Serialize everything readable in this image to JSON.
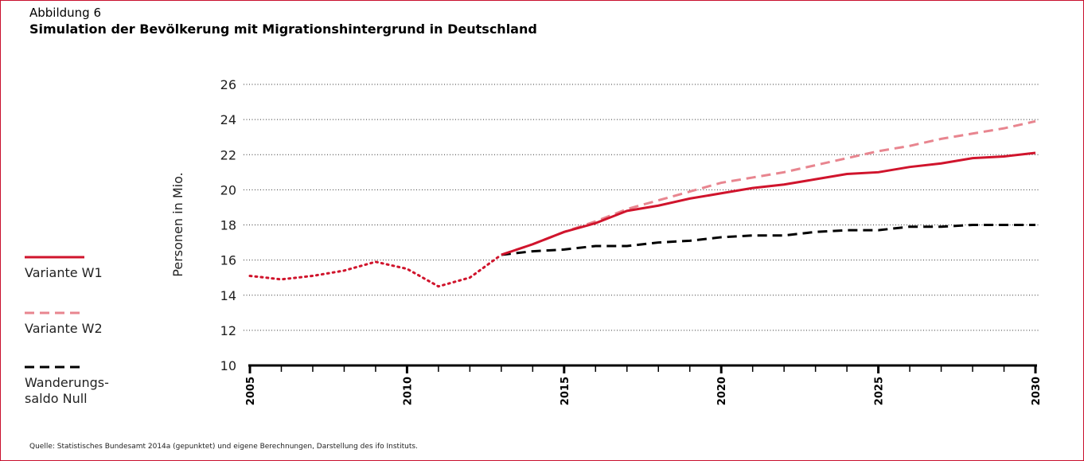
{
  "chart_data": {
    "type": "line",
    "label": "Abbildung 6",
    "title": "Simulation der Bevölkerung mit Migrationshintergrund in Deutschland",
    "ylabel": "Personen in Mio.",
    "source": "Quelle: Statistisches Bundesamt 2014a (gepunktet) und eigene Berechnungen, Darstellung des ifo Instituts.",
    "x": [
      2005,
      2006,
      2007,
      2008,
      2009,
      2010,
      2011,
      2012,
      2013,
      2014,
      2015,
      2016,
      2017,
      2018,
      2019,
      2020,
      2021,
      2022,
      2023,
      2024,
      2025,
      2026,
      2027,
      2028,
      2029,
      2030
    ],
    "series": [
      {
        "color": "#d0142c",
        "style": "dotted",
        "values": [
          15.1,
          14.9,
          15.1,
          15.4,
          15.9,
          15.5,
          14.5,
          15.0,
          16.3,
          null,
          null,
          null,
          null,
          null,
          null,
          null,
          null,
          null,
          null,
          null,
          null,
          null,
          null,
          null,
          null,
          null
        ]
      },
      {
        "name": "Variante W2",
        "color": "#e8858f",
        "style": "dashed",
        "values": [
          null,
          null,
          null,
          null,
          null,
          null,
          null,
          null,
          16.3,
          16.9,
          17.6,
          18.2,
          18.9,
          19.4,
          19.9,
          20.4,
          20.7,
          21.0,
          21.4,
          21.8,
          22.2,
          22.5,
          22.9,
          23.2,
          23.5,
          23.9
        ]
      },
      {
        "name": "Wanderungs-\nsaldo Null",
        "color": "#000000",
        "style": "dashed",
        "values": [
          null,
          null,
          null,
          null,
          null,
          null,
          null,
          null,
          16.3,
          16.5,
          16.6,
          16.8,
          16.8,
          17.0,
          17.1,
          17.3,
          17.4,
          17.4,
          17.6,
          17.7,
          17.7,
          17.9,
          17.9,
          18.0,
          18.0,
          18.0
        ]
      },
      {
        "name": "Variante W1",
        "color": "#d0142c",
        "style": "solid",
        "values": [
          null,
          null,
          null,
          null,
          null,
          null,
          null,
          null,
          16.3,
          16.9,
          17.6,
          18.1,
          18.8,
          19.1,
          19.5,
          19.8,
          20.1,
          20.3,
          20.6,
          20.9,
          21.0,
          21.3,
          21.5,
          21.8,
          21.9,
          22.1
        ]
      }
    ],
    "legend_order": [
      3,
      1,
      2
    ],
    "xlim": [
      2005,
      2030
    ],
    "xticks": [
      2005,
      2010,
      2015,
      2020,
      2025,
      2030
    ],
    "xticks_minor": [
      2005,
      2006,
      2007,
      2008,
      2009,
      2010,
      2011,
      2012,
      2013,
      2014,
      2015,
      2016,
      2017,
      2018,
      2019,
      2020,
      2021,
      2022,
      2023,
      2024,
      2025,
      2026,
      2027,
      2028,
      2029,
      2030
    ],
    "ylim": [
      10,
      26
    ],
    "yticks": [
      10,
      12,
      14,
      16,
      18,
      20,
      22,
      24,
      26
    ],
    "grid": true
  }
}
